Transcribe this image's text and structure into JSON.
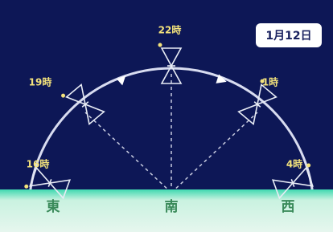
{
  "date_label": "1月12日",
  "times": [
    "16時",
    "19時",
    "22時",
    "1時",
    "4時"
  ],
  "directions": [
    "東",
    "南",
    "西"
  ]
}
